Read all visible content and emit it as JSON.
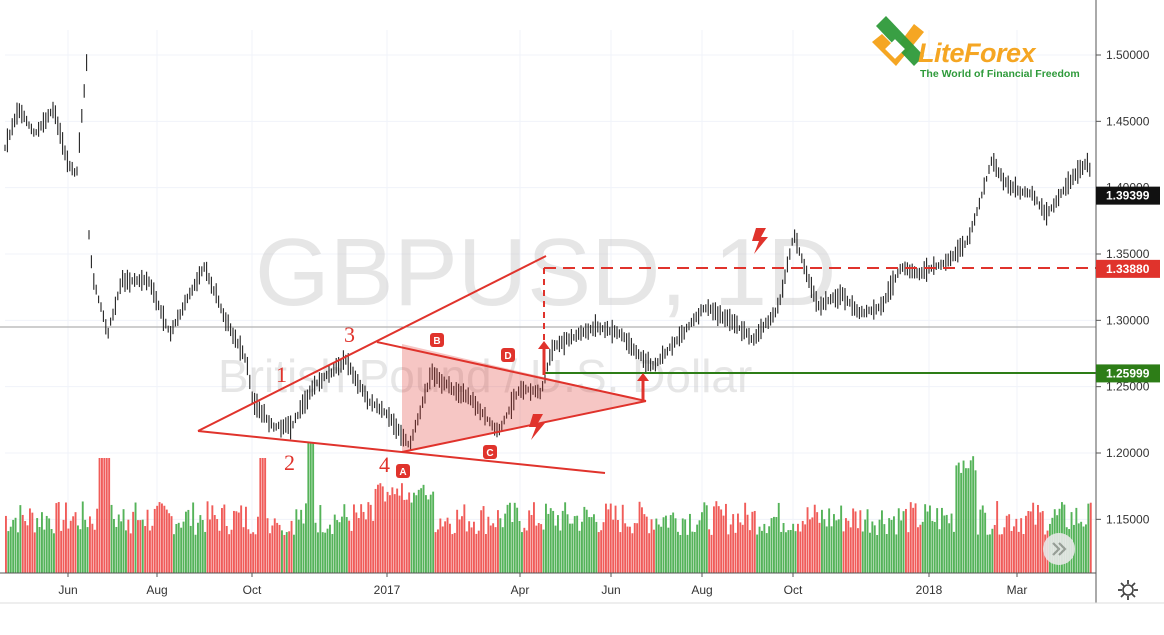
{
  "chart_data": {
    "type": "candlestick",
    "symbol_watermark": "GBPUSD, 1D",
    "subtitle_watermark": "British Pound / U.S. Dollar",
    "ylim": [
      1.11,
      1.52
    ],
    "y_ticks": [
      "1.50000",
      "1.45000",
      "1.40000",
      "1.35000",
      "1.30000",
      "1.25000",
      "1.20000",
      "1.15000"
    ],
    "x_ticks": [
      "Jun",
      "Aug",
      "Oct",
      "2017",
      "Apr",
      "Jun",
      "Aug",
      "Oct",
      "2018",
      "Mar"
    ],
    "x_range": [
      "2016-05-01",
      "2018-04-02"
    ],
    "price_path": [
      [
        "2016-05-01",
        1.43
      ],
      [
        "2016-05-10",
        1.46
      ],
      [
        "2016-05-20",
        1.44
      ],
      [
        "2016-06-01",
        1.46
      ],
      [
        "2016-06-10",
        1.42
      ],
      [
        "2016-06-16",
        1.41
      ],
      [
        "2016-06-23",
        1.5
      ],
      [
        "2016-06-24",
        1.36
      ],
      [
        "2016-06-27",
        1.33
      ],
      [
        "2016-07-06",
        1.29
      ],
      [
        "2016-07-15",
        1.33
      ],
      [
        "2016-08-01",
        1.33
      ],
      [
        "2016-08-15",
        1.29
      ],
      [
        "2016-09-01",
        1.33
      ],
      [
        "2016-09-06",
        1.34
      ],
      [
        "2016-09-20",
        1.3
      ],
      [
        "2016-10-03",
        1.27
      ],
      [
        "2016-10-07",
        1.24
      ],
      [
        "2016-10-20",
        1.22
      ],
      [
        "2016-11-01",
        1.22
      ],
      [
        "2016-11-15",
        1.25
      ],
      [
        "2016-12-06",
        1.27
      ],
      [
        "2016-12-20",
        1.24
      ],
      [
        "2017-01-01",
        1.23
      ],
      [
        "2017-01-16",
        1.205
      ],
      [
        "2017-01-30",
        1.26
      ],
      [
        "2017-02-10",
        1.25
      ],
      [
        "2017-02-25",
        1.24
      ],
      [
        "2017-03-14",
        1.215
      ],
      [
        "2017-03-28",
        1.25
      ],
      [
        "2017-04-10",
        1.245
      ],
      [
        "2017-04-18",
        1.28
      ],
      [
        "2017-05-15",
        1.295
      ],
      [
        "2017-06-01",
        1.29
      ],
      [
        "2017-06-15",
        1.27
      ],
      [
        "2017-06-22",
        1.265
      ],
      [
        "2017-07-10",
        1.29
      ],
      [
        "2017-07-25",
        1.31
      ],
      [
        "2017-08-10",
        1.3
      ],
      [
        "2017-08-25",
        1.285
      ],
      [
        "2017-09-10",
        1.31
      ],
      [
        "2017-09-20",
        1.365
      ],
      [
        "2017-10-05",
        1.31
      ],
      [
        "2017-10-20",
        1.32
      ],
      [
        "2017-11-01",
        1.305
      ],
      [
        "2017-11-15",
        1.31
      ],
      [
        "2017-11-28",
        1.34
      ],
      [
        "2017-12-10",
        1.335
      ],
      [
        "2017-12-28",
        1.345
      ],
      [
        "2018-01-10",
        1.36
      ],
      [
        "2018-01-25",
        1.42
      ],
      [
        "2018-02-05",
        1.4
      ],
      [
        "2018-02-20",
        1.395
      ],
      [
        "2018-03-01",
        1.38
      ],
      [
        "2018-03-20",
        1.41
      ],
      [
        "2018-03-28",
        1.42
      ],
      [
        "2018-04-02",
        1.39
      ]
    ],
    "price_tags": [
      {
        "label": "1.39399",
        "value": 1.39399,
        "bg": "#111111",
        "fg": "#ffffff"
      },
      {
        "label": "1.33880",
        "value": 1.3388,
        "bg": "#e0332c",
        "fg": "#ffffff"
      },
      {
        "label": "1.25999",
        "value": 1.25999,
        "bg": "#2d7d17",
        "fg": "#ffffff"
      }
    ],
    "wave_labels": [
      "1",
      "2",
      "3",
      "4"
    ],
    "point_labels": [
      "A",
      "B",
      "C",
      "D"
    ],
    "volume_up_color": "#4caf50",
    "volume_down_color": "#ef5350",
    "drawing_color": "#e0332c",
    "level_color": "#2d7d17"
  },
  "logo": {
    "brand": "LiteForex",
    "tagline": "The World of Financial Freedom",
    "primary_color": "#f5a623",
    "secondary_color": "#2e9a3a"
  },
  "toolbar": {
    "settings_icon": "gear-icon",
    "scroll_icon": "double-chevron-right-icon"
  }
}
